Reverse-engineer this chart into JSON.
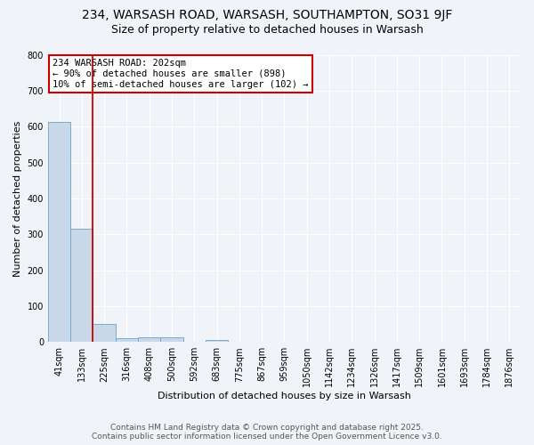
{
  "title_line1": "234, WARSASH ROAD, WARSASH, SOUTHAMPTON, SO31 9JF",
  "title_line2": "Size of property relative to detached houses in Warsash",
  "xlabel": "Distribution of detached houses by size in Warsash",
  "ylabel": "Number of detached properties",
  "categories": [
    "41sqm",
    "133sqm",
    "225sqm",
    "316sqm",
    "408sqm",
    "500sqm",
    "592sqm",
    "683sqm",
    "775sqm",
    "867sqm",
    "959sqm",
    "1050sqm",
    "1142sqm",
    "1234sqm",
    "1326sqm",
    "1417sqm",
    "1509sqm",
    "1601sqm",
    "1693sqm",
    "1784sqm",
    "1876sqm"
  ],
  "values": [
    614,
    315,
    50,
    10,
    12,
    13,
    0,
    5,
    0,
    0,
    0,
    0,
    0,
    0,
    0,
    0,
    0,
    0,
    0,
    0,
    0
  ],
  "bar_color": "#c8d8e8",
  "bar_edge_color": "#7aaacc",
  "vline_color": "#cc0000",
  "annotation_text": "234 WARSASH ROAD: 202sqm\n← 90% of detached houses are smaller (898)\n10% of semi-detached houses are larger (102) →",
  "annotation_box_edgecolor": "#cc0000",
  "annotation_box_facecolor": "white",
  "ylim": [
    0,
    800
  ],
  "yticks": [
    0,
    100,
    200,
    300,
    400,
    500,
    600,
    700,
    800
  ],
  "footer_line1": "Contains HM Land Registry data © Crown copyright and database right 2025.",
  "footer_line2": "Contains public sector information licensed under the Open Government Licence v3.0.",
  "background_color": "#f0f4f8",
  "grid_color": "#ffffff",
  "title_fontsize": 10,
  "subtitle_fontsize": 9,
  "axis_label_fontsize": 8,
  "tick_fontsize": 7,
  "footer_fontsize": 6.5,
  "annotation_fontsize": 7.5
}
